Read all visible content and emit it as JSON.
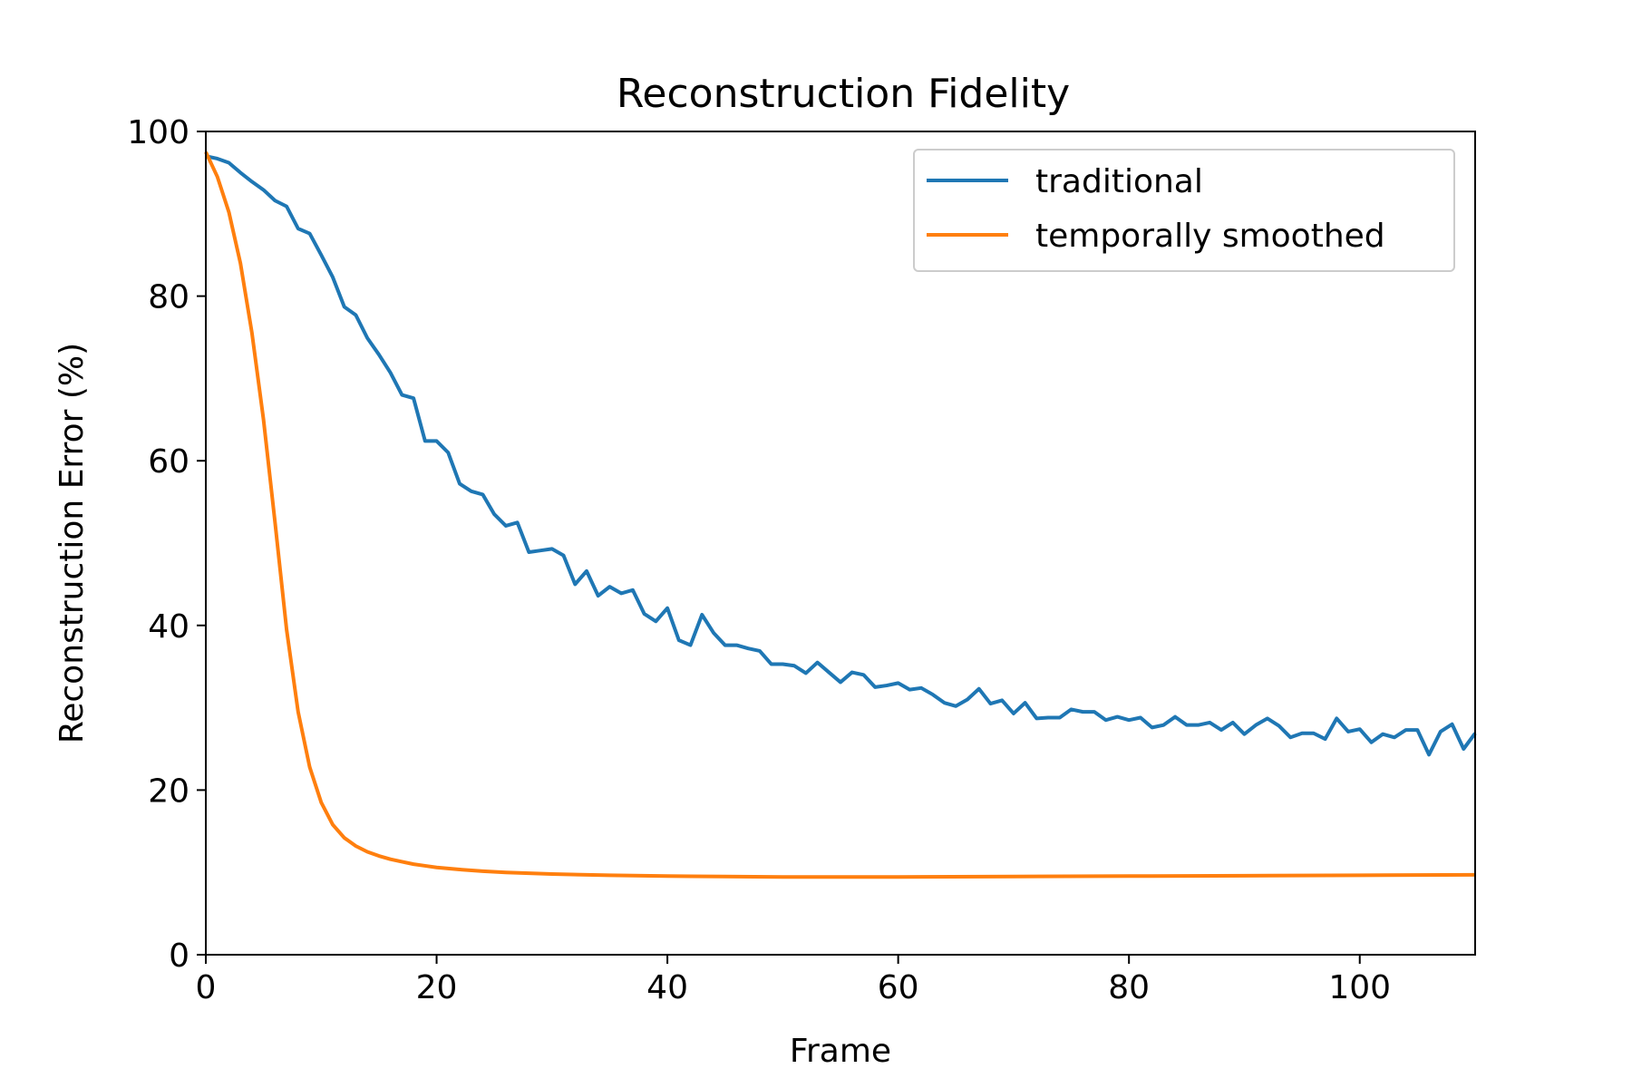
{
  "chart_data": {
    "type": "line",
    "title": "Reconstruction Fidelity",
    "xlabel": "Frame",
    "ylabel": "Reconstruction Error (%)",
    "xlim": [
      0,
      110
    ],
    "ylim": [
      0,
      100
    ],
    "xticks": [
      0,
      20,
      40,
      60,
      80,
      100
    ],
    "yticks": [
      0,
      20,
      40,
      60,
      80,
      100
    ],
    "grid": false,
    "legend_position": "top-right",
    "series": [
      {
        "name": "traditional",
        "color": "#1f77b4",
        "x": [
          0,
          1,
          2,
          3,
          4,
          5,
          6,
          7,
          8,
          9,
          10,
          11,
          12,
          13,
          14,
          15,
          16,
          17,
          18,
          19,
          20,
          21,
          22,
          23,
          24,
          25,
          26,
          27,
          28,
          29,
          30,
          31,
          32,
          33,
          34,
          35,
          36,
          37,
          38,
          39,
          40,
          41,
          42,
          43,
          44,
          45,
          46,
          47,
          48,
          49,
          50,
          51,
          52,
          53,
          54,
          55,
          56,
          57,
          58,
          59,
          60,
          61,
          62,
          63,
          64,
          65,
          66,
          67,
          68,
          69,
          70,
          71,
          72,
          73,
          74,
          75,
          76,
          77,
          78,
          79,
          80,
          81,
          82,
          83,
          84,
          85,
          86,
          87,
          88,
          89,
          90,
          91,
          92,
          93,
          94,
          95,
          96,
          97,
          98,
          99,
          100,
          101,
          102,
          103,
          104,
          105,
          106,
          107,
          108,
          109,
          110
        ],
        "y": [
          97.0,
          96.7,
          96.2,
          95.0,
          93.9,
          92.9,
          91.6,
          90.9,
          88.2,
          87.6,
          85.0,
          82.3,
          78.7,
          77.7,
          74.9,
          72.9,
          70.7,
          68.0,
          67.6,
          62.4,
          62.4,
          61.0,
          57.2,
          56.3,
          55.9,
          53.5,
          52.1,
          52.5,
          48.9,
          49.1,
          49.3,
          48.5,
          45.0,
          46.6,
          43.6,
          44.7,
          43.9,
          44.3,
          41.4,
          40.5,
          42.1,
          38.2,
          37.6,
          41.3,
          39.1,
          37.6,
          37.6,
          37.2,
          36.9,
          35.3,
          35.3,
          35.1,
          34.2,
          35.5,
          34.3,
          33.1,
          34.3,
          34.0,
          32.5,
          32.7,
          33.0,
          32.2,
          32.4,
          31.6,
          30.6,
          30.2,
          31.0,
          32.3,
          30.5,
          30.9,
          29.3,
          30.6,
          28.7,
          28.8,
          28.8,
          29.8,
          29.5,
          29.5,
          28.5,
          28.9,
          28.5,
          28.8,
          27.6,
          27.9,
          28.9,
          27.9,
          27.9,
          28.2,
          27.3,
          28.2,
          26.8,
          27.9,
          28.7,
          27.8,
          26.4,
          26.9,
          26.9,
          26.2,
          28.7,
          27.1,
          27.4,
          25.8,
          26.8,
          26.4,
          27.3,
          27.3,
          24.3,
          27.1,
          28.0,
          25.0,
          26.9
        ]
      },
      {
        "name": "temporally smoothed",
        "color": "#ff7f0e",
        "x": [
          0,
          1,
          2,
          3,
          4,
          5,
          6,
          7,
          8,
          9,
          10,
          11,
          12,
          13,
          14,
          15,
          16,
          17,
          18,
          19,
          20,
          22,
          24,
          26,
          28,
          30,
          35,
          40,
          45,
          50,
          55,
          60,
          70,
          80,
          90,
          100,
          110
        ],
        "y": [
          97.5,
          94.5,
          90.2,
          84.0,
          75.5,
          65.0,
          52.5,
          39.5,
          29.5,
          22.8,
          18.5,
          15.8,
          14.2,
          13.2,
          12.5,
          12.0,
          11.6,
          11.3,
          11.0,
          10.8,
          10.6,
          10.35,
          10.15,
          10.0,
          9.9,
          9.8,
          9.65,
          9.55,
          9.5,
          9.45,
          9.45,
          9.45,
          9.5,
          9.55,
          9.6,
          9.65,
          9.7
        ]
      }
    ]
  }
}
